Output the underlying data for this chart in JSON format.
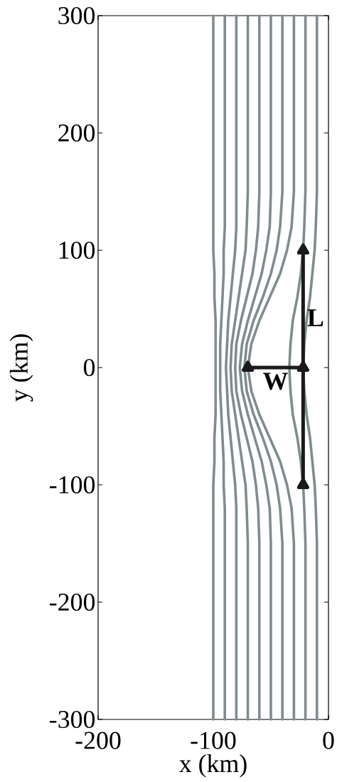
{
  "chart_data": {
    "type": "line",
    "xlabel": "x (km)",
    "ylabel": "y (km)",
    "xlim": [
      -200,
      0
    ],
    "ylim": [
      -300,
      300
    ],
    "xticks": [
      -200,
      -100,
      0
    ],
    "yticks": [
      -300,
      -200,
      -100,
      0,
      100,
      200,
      300
    ],
    "grid": false,
    "marker": "none",
    "line_style": "solid",
    "series": [
      {
        "color": "#7f8c8f",
        "x": [
          -100,
          -100,
          -100,
          -100,
          -99,
          -99,
          -98,
          -98,
          -98,
          -98,
          -98,
          -99,
          -99,
          -100,
          -100,
          -100,
          -100
        ],
        "values": [
          -300,
          -150,
          -120,
          -100,
          -80,
          -60,
          -40,
          -20,
          0,
          20,
          40,
          60,
          80,
          100,
          120,
          150,
          300
        ]
      },
      {
        "color": "#7f8c8f",
        "x": [
          -90,
          -90,
          -90,
          -91,
          -91,
          -92,
          -93,
          -94,
          -94,
          -94,
          -93,
          -92,
          -91,
          -91,
          -90,
          -90,
          -90
        ],
        "values": [
          -300,
          -150,
          -120,
          -100,
          -80,
          -60,
          -40,
          -20,
          0,
          20,
          40,
          60,
          80,
          100,
          120,
          150,
          300
        ]
      },
      {
        "color": "#7f8c8f",
        "x": [
          -80,
          -80,
          -80,
          -81,
          -83,
          -85,
          -87,
          -88,
          -89,
          -88,
          -87,
          -85,
          -83,
          -81,
          -80,
          -80,
          -80
        ],
        "values": [
          -300,
          -150,
          -120,
          -100,
          -80,
          -60,
          -40,
          -20,
          0,
          20,
          40,
          60,
          80,
          100,
          120,
          150,
          300
        ]
      },
      {
        "color": "#7f8c8f",
        "x": [
          -70,
          -70,
          -71,
          -72,
          -75,
          -78,
          -81,
          -84,
          -85,
          -84,
          -81,
          -78,
          -75,
          -72,
          -71,
          -70,
          -70
        ],
        "values": [
          -300,
          -150,
          -120,
          -100,
          -80,
          -60,
          -40,
          -20,
          0,
          20,
          40,
          60,
          80,
          100,
          120,
          150,
          300
        ]
      },
      {
        "color": "#7f8c8f",
        "x": [
          -60,
          -60,
          -61,
          -63,
          -66,
          -71,
          -76,
          -80,
          -81,
          -80,
          -76,
          -71,
          -66,
          -63,
          -61,
          -60,
          -60
        ],
        "values": [
          -300,
          -150,
          -120,
          -100,
          -80,
          -60,
          -40,
          -20,
          0,
          20,
          40,
          60,
          80,
          100,
          120,
          150,
          300
        ]
      },
      {
        "color": "#7f8c8f",
        "x": [
          -50,
          -50,
          -51,
          -54,
          -58,
          -64,
          -70,
          -75,
          -77,
          -75,
          -70,
          -64,
          -58,
          -54,
          -51,
          -50,
          -50
        ],
        "values": [
          -300,
          -150,
          -120,
          -100,
          -80,
          -60,
          -40,
          -20,
          0,
          20,
          40,
          60,
          80,
          100,
          120,
          150,
          300
        ]
      },
      {
        "color": "#7f8c8f",
        "x": [
          -40,
          -40,
          -42,
          -45,
          -50,
          -57,
          -65,
          -71,
          -73,
          -71,
          -65,
          -57,
          -50,
          -45,
          -42,
          -40,
          -40
        ],
        "values": [
          -300,
          -150,
          -120,
          -100,
          -80,
          -60,
          -40,
          -20,
          0,
          20,
          40,
          60,
          80,
          100,
          120,
          150,
          300
        ]
      },
      {
        "color": "#7f8c8f",
        "x": [
          -30,
          -30,
          -32,
          -36,
          -42,
          -51,
          -60,
          -67,
          -70,
          -67,
          -60,
          -51,
          -42,
          -36,
          -32,
          -30,
          -30
        ],
        "values": [
          -300,
          -150,
          -120,
          -100,
          -80,
          -60,
          -40,
          -20,
          0,
          20,
          40,
          60,
          80,
          100,
          120,
          150,
          300
        ]
      },
      {
        "color": "#7f8c8f",
        "x": [
          -20,
          -20,
          -21,
          -22,
          -24,
          -27,
          -31,
          -33,
          -34,
          -33,
          -31,
          -27,
          -24,
          -22,
          -21,
          -20,
          -20
        ],
        "values": [
          -300,
          -150,
          -120,
          -100,
          -80,
          -60,
          -40,
          -20,
          0,
          20,
          40,
          60,
          80,
          100,
          120,
          150,
          300
        ]
      },
      {
        "color": "#7f8c8f",
        "x": [
          -10,
          -10,
          -11,
          -12,
          -14,
          -16,
          -19,
          -21,
          -22,
          -21,
          -19,
          -16,
          -14,
          -12,
          -11,
          -10,
          -10
        ],
        "values": [
          -300,
          -150,
          -120,
          -100,
          -80,
          -60,
          -40,
          -20,
          0,
          20,
          40,
          60,
          80,
          100,
          120,
          150,
          300
        ]
      },
      {
        "color": "#1a1a1a",
        "marker": "triangle",
        "x": [
          -70,
          -22
        ],
        "values": [
          0,
          0
        ]
      },
      {
        "color": "#1a1a1a",
        "marker": "triangle",
        "x": [
          -22,
          -22
        ],
        "values": [
          -100,
          100
        ]
      }
    ],
    "annotations": [
      "W",
      "L"
    ]
  }
}
